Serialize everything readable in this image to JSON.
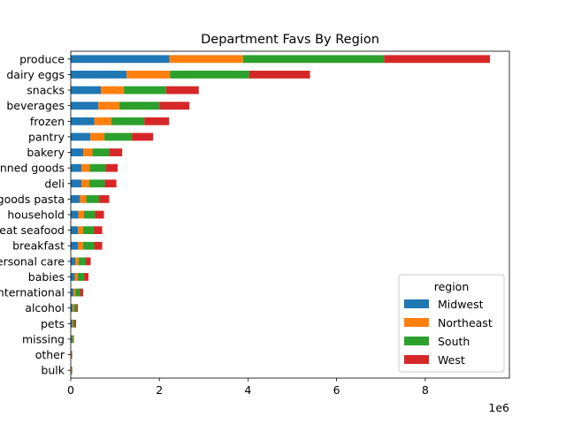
{
  "chart_data": {
    "type": "bar",
    "orientation": "horizontal",
    "stacked": true,
    "title": "Department Favs By Region",
    "xlabel": "",
    "ylabel": "",
    "x_offset_text": "1e6",
    "xlim": [
      0,
      9900000
    ],
    "xticks": [
      0,
      2000000,
      4000000,
      6000000,
      8000000
    ],
    "xtick_labels": [
      "0",
      "2",
      "4",
      "6",
      "8"
    ],
    "categories": [
      "produce",
      "dairy eggs",
      "snacks",
      "beverages",
      "frozen",
      "pantry",
      "bakery",
      "canned goods",
      "deli",
      "dry goods pasta",
      "household",
      "meat seafood",
      "breakfast",
      "personal care",
      "babies",
      "international",
      "alcohol",
      "pets",
      "missing",
      "other",
      "bulk"
    ],
    "series": [
      {
        "name": "Midwest",
        "color": "#1f77b4",
        "values": [
          2230000,
          1260000,
          680000,
          620000,
          530000,
          440000,
          280000,
          240000,
          240000,
          200000,
          170000,
          160000,
          160000,
          100000,
          90000,
          60000,
          40000,
          30000,
          20000,
          10000,
          10000
        ]
      },
      {
        "name": "Northeast",
        "color": "#ff7f0e",
        "values": [
          1660000,
          980000,
          520000,
          480000,
          390000,
          320000,
          210000,
          190000,
          180000,
          150000,
          130000,
          120000,
          120000,
          80000,
          70000,
          50000,
          30000,
          20000,
          10000,
          5000,
          5000
        ]
      },
      {
        "name": "South",
        "color": "#2ca02c",
        "values": [
          3180000,
          1790000,
          950000,
          900000,
          740000,
          620000,
          380000,
          360000,
          350000,
          290000,
          250000,
          240000,
          250000,
          160000,
          140000,
          100000,
          60000,
          40000,
          30000,
          10000,
          10000
        ]
      },
      {
        "name": "West",
        "color": "#d62728",
        "values": [
          2390000,
          1370000,
          740000,
          680000,
          560000,
          480000,
          290000,
          270000,
          260000,
          230000,
          200000,
          190000,
          180000,
          110000,
          100000,
          70000,
          30000,
          30000,
          10000,
          10000,
          10000
        ]
      }
    ],
    "legend": {
      "title": "region",
      "position": "lower right"
    },
    "grid": false
  }
}
